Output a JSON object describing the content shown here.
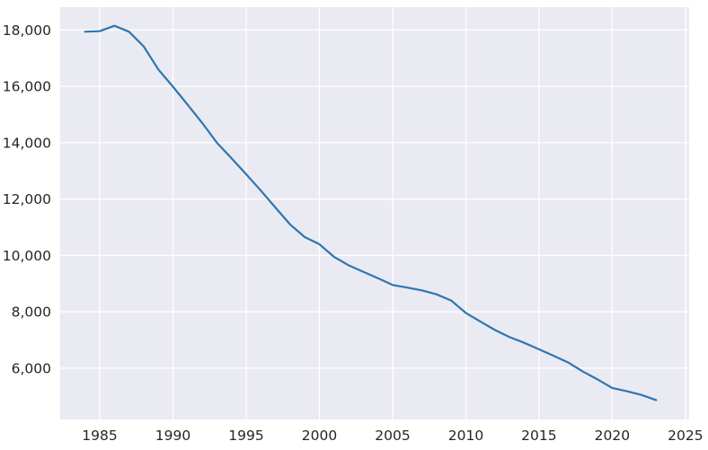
{
  "chart_data": {
    "type": "line",
    "title": "",
    "subtitle": "",
    "xlabel": "",
    "ylabel": "",
    "legend": false,
    "grid": true,
    "plot_bg_color": "#eaeaf2",
    "grid_color": "#ffffff",
    "tick_color": "#262626",
    "xlim": [
      1982.3,
      2025.25
    ],
    "ylim": [
      4180,
      18810
    ],
    "xticks": [
      1985,
      1990,
      1995,
      2000,
      2005,
      2010,
      2015,
      2020,
      2025
    ],
    "xtick_labels": [
      "1985",
      "1990",
      "1995",
      "2000",
      "2005",
      "2010",
      "2015",
      "2020",
      "2025"
    ],
    "yticks": [
      6000,
      8000,
      10000,
      12000,
      14000,
      16000,
      18000
    ],
    "ytick_labels": [
      "6,000",
      "8,000",
      "10,000",
      "12,000",
      "14,000",
      "16,000",
      "18,000"
    ],
    "x": [
      1984,
      1985,
      1986,
      1987,
      1988,
      1989,
      1990,
      1991,
      1992,
      1993,
      1994,
      1995,
      1996,
      1997,
      1998,
      1999,
      2000,
      2001,
      2002,
      2003,
      2004,
      2005,
      2006,
      2007,
      2008,
      2009,
      2010,
      2011,
      2012,
      2013,
      2014,
      2015,
      2016,
      2017,
      2018,
      2019,
      2020,
      2021,
      2022,
      2023
    ],
    "series": [
      {
        "name": "series-1",
        "color": "#2e76b0",
        "values": [
          17940,
          17960,
          18150,
          17940,
          17420,
          16600,
          15990,
          15350,
          14700,
          14000,
          13450,
          12880,
          12300,
          11700,
          11100,
          10650,
          10400,
          9950,
          9650,
          9420,
          9190,
          8950,
          8860,
          8760,
          8620,
          8400,
          7960,
          7650,
          7350,
          7100,
          6900,
          6670,
          6440,
          6200,
          5880,
          5600,
          5300,
          5180,
          5050,
          4870
        ]
      }
    ]
  }
}
